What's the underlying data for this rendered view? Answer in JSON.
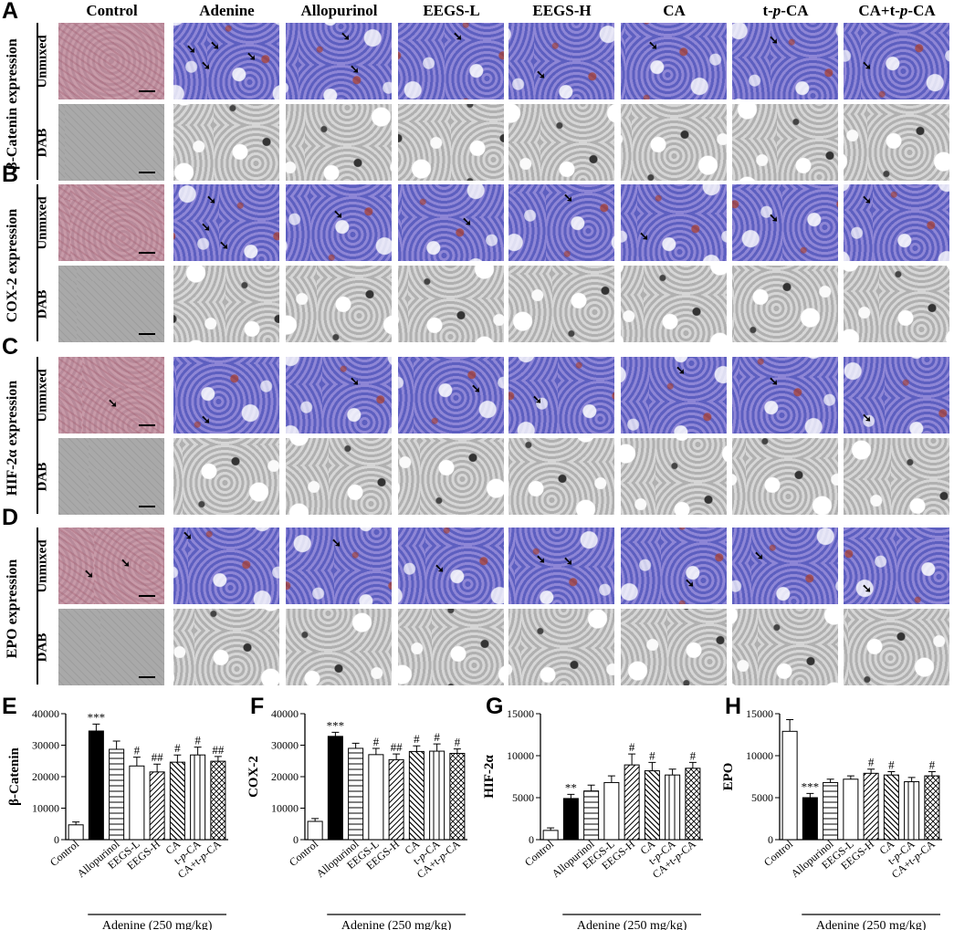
{
  "figure": {
    "columns": [
      "Control",
      "Adenine",
      "Allopurinol",
      "EEGS-L",
      "EEGS-H",
      "CA",
      "t-p-CA",
      "CA+t-p-CA"
    ],
    "panels": [
      {
        "letter": "A",
        "expression": "β-Catenin expression"
      },
      {
        "letter": "B",
        "expression": "COX-2 expression"
      },
      {
        "letter": "C",
        "expression": "HIF-2α expression"
      },
      {
        "letter": "D",
        "expression": "EPO expression"
      }
    ],
    "row_labels": {
      "unmixed": "Unmixed",
      "dab": "DAB"
    },
    "chart_letters": [
      "E",
      "F",
      "G",
      "H"
    ]
  },
  "colors": {
    "unmixed_tissue": "#6b6ccc",
    "control_tissue": "#b98d9d",
    "dab_gray": "#c4c4c4",
    "bar_black": "#000000"
  },
  "chart_data": [
    {
      "type": "bar",
      "ylabel": "β-Catenin",
      "ylim": [
        0,
        40000
      ],
      "yticks": [
        0,
        10000,
        20000,
        30000,
        40000
      ],
      "categories": [
        "Control",
        "Adenine",
        "Allopurinol",
        "EEGS-L",
        "EEGS-H",
        "CA",
        "t-p-CA",
        "CA+t-p-CA"
      ],
      "tick_labels": [
        "Control",
        "",
        "Allopurinol",
        "EEGS-L",
        "EEGS-H",
        "CA",
        "t-p-CA",
        "CA+t-p-CA"
      ],
      "values": [
        4700,
        34500,
        28700,
        23400,
        21500,
        24600,
        26900,
        24900
      ],
      "errors": [
        900,
        2200,
        2600,
        2800,
        2500,
        2300,
        2500,
        1500
      ],
      "sig": [
        "",
        "***",
        "",
        "#",
        "##",
        "#",
        "#",
        "##"
      ],
      "patterns": [
        "white",
        "black",
        "hlines",
        "white",
        "diag",
        "dense-diag",
        "vlines",
        "cross"
      ],
      "group_label": "Adenine (250 mg/kg)"
    },
    {
      "type": "bar",
      "ylabel": "COX-2",
      "ylim": [
        0,
        40000
      ],
      "yticks": [
        0,
        10000,
        20000,
        30000,
        40000
      ],
      "categories": [
        "Control",
        "Adenine",
        "Allopurinol",
        "EEGS-L",
        "EEGS-H",
        "CA",
        "t-p-CA",
        "CA+t-p-CA"
      ],
      "tick_labels": [
        "Control",
        "",
        "Allopurinol",
        "EEGS-L",
        "EEGS-H",
        "CA",
        "t-p-CA",
        "CA+t-p-CA"
      ],
      "values": [
        5800,
        32800,
        29000,
        27000,
        25400,
        28000,
        28100,
        27400
      ],
      "errors": [
        900,
        1300,
        1600,
        2000,
        1800,
        1800,
        2300,
        1400
      ],
      "sig": [
        "",
        "***",
        "",
        "#",
        "##",
        "#",
        "#",
        "#"
      ],
      "patterns": [
        "white",
        "black",
        "hlines",
        "white",
        "diag",
        "dense-diag",
        "vlines",
        "cross"
      ],
      "group_label": "Adenine (250 mg/kg)"
    },
    {
      "type": "bar",
      "ylabel": "HIF-2α",
      "ylim": [
        0,
        15000
      ],
      "yticks": [
        0,
        5000,
        10000,
        15000
      ],
      "categories": [
        "Control",
        "Adenine",
        "Allopurinol",
        "EEGS-L",
        "EEGS-H",
        "CA",
        "t-p-CA",
        "CA+t-p-CA"
      ],
      "tick_labels": [
        "Control",
        "",
        "Allopurinol",
        "EEGS-L",
        "EEGS-H",
        "CA",
        "t-p-CA",
        "CA+t-p-CA"
      ],
      "values": [
        1100,
        4900,
        5800,
        6800,
        8900,
        8200,
        7700,
        8500
      ],
      "errors": [
        300,
        500,
        700,
        800,
        1300,
        1000,
        700,
        700
      ],
      "sig": [
        "",
        "**",
        "",
        "",
        "#",
        "#",
        "",
        "#"
      ],
      "patterns": [
        "white",
        "black",
        "hlines",
        "white",
        "diag",
        "dense-diag",
        "vlines",
        "cross"
      ],
      "group_label": "Adenine (250 mg/kg)"
    },
    {
      "type": "bar",
      "ylabel": "EPO",
      "ylim": [
        0,
        15000
      ],
      "yticks": [
        0,
        5000,
        10000,
        15000
      ],
      "categories": [
        "Control",
        "Adenine",
        "Allopurinol",
        "EEGS-L",
        "EEGS-H",
        "CA",
        "t-p-CA",
        "CA+t-p-CA"
      ],
      "tick_labels": [
        "Control",
        "",
        "Allopurinol",
        "EEGS-L",
        "EEGS-H",
        "CA",
        "t-p-CA",
        "CA+t-p-CA"
      ],
      "values": [
        12900,
        5000,
        6800,
        7200,
        7900,
        7700,
        6900,
        7600
      ],
      "errors": [
        1400,
        500,
        400,
        400,
        500,
        400,
        500,
        500
      ],
      "sig": [
        "",
        "***",
        "",
        "",
        "#",
        "#",
        "",
        "#"
      ],
      "patterns": [
        "white",
        "black",
        "hlines",
        "white",
        "diag",
        "dense-diag",
        "vlines",
        "cross"
      ],
      "group_label": "Adenine (250 mg/kg)"
    }
  ]
}
